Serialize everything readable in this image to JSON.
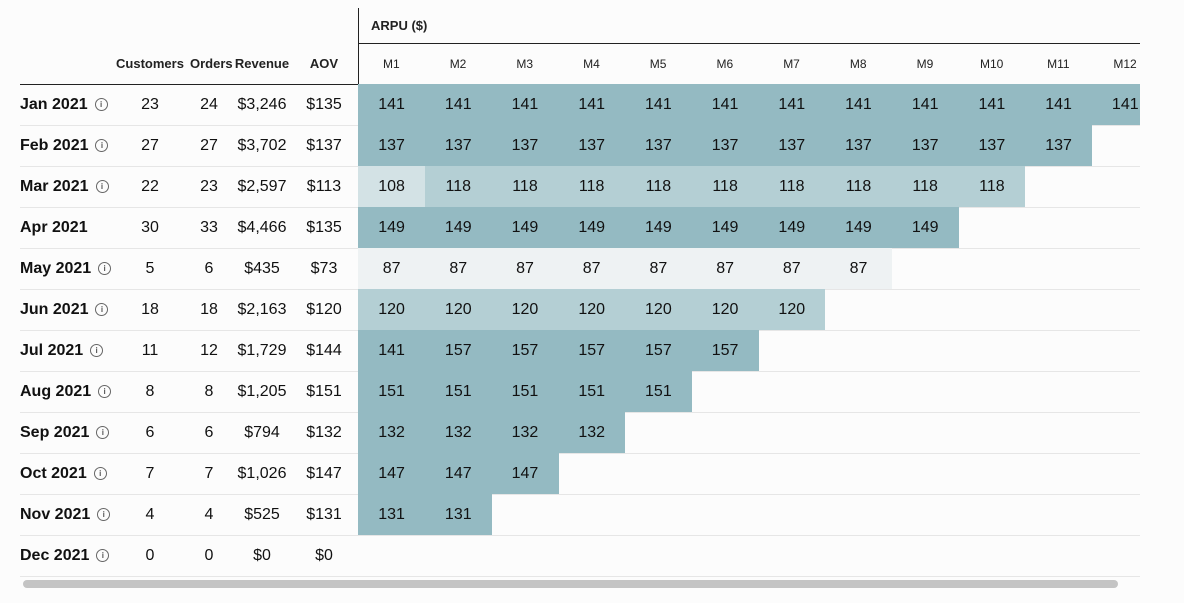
{
  "group_header": "ARPU ($)",
  "columns": [
    "Customers",
    "Orders",
    "Revenue",
    "AOV"
  ],
  "months": [
    "M1",
    "M2",
    "M3",
    "M4",
    "M5",
    "M6",
    "M7",
    "M8",
    "M9",
    "M10",
    "M11",
    "M12"
  ],
  "colors": {
    "dark": "#94bac2",
    "mid": "#b4cfd4",
    "light": "#d3e2e5",
    "lightest": "#eef2f3"
  },
  "rows": [
    {
      "label": "Jan 2021",
      "info": true,
      "customers": "23",
      "orders": "24",
      "revenue": "$3,246",
      "aov": "$135",
      "cohort": [
        "141",
        "141",
        "141",
        "141",
        "141",
        "141",
        "141",
        "141",
        "141",
        "141",
        "141",
        "141"
      ]
    },
    {
      "label": "Feb 2021",
      "info": true,
      "customers": "27",
      "orders": "27",
      "revenue": "$3,702",
      "aov": "$137",
      "cohort": [
        "137",
        "137",
        "137",
        "137",
        "137",
        "137",
        "137",
        "137",
        "137",
        "137",
        "137"
      ]
    },
    {
      "label": "Mar 2021",
      "info": true,
      "customers": "22",
      "orders": "23",
      "revenue": "$2,597",
      "aov": "$113",
      "cohort": [
        "108",
        "118",
        "118",
        "118",
        "118",
        "118",
        "118",
        "118",
        "118",
        "118"
      ]
    },
    {
      "label": "Apr 2021",
      "info": false,
      "customers": "30",
      "orders": "33",
      "revenue": "$4,466",
      "aov": "$135",
      "cohort": [
        "149",
        "149",
        "149",
        "149",
        "149",
        "149",
        "149",
        "149",
        "149"
      ]
    },
    {
      "label": "May 2021",
      "info": true,
      "customers": "5",
      "orders": "6",
      "revenue": "$435",
      "aov": "$73",
      "cohort": [
        "87",
        "87",
        "87",
        "87",
        "87",
        "87",
        "87",
        "87"
      ]
    },
    {
      "label": "Jun 2021",
      "info": true,
      "customers": "18",
      "orders": "18",
      "revenue": "$2,163",
      "aov": "$120",
      "cohort": [
        "120",
        "120",
        "120",
        "120",
        "120",
        "120",
        "120"
      ]
    },
    {
      "label": "Jul 2021",
      "info": true,
      "customers": "11",
      "orders": "12",
      "revenue": "$1,729",
      "aov": "$144",
      "cohort": [
        "141",
        "157",
        "157",
        "157",
        "157",
        "157"
      ]
    },
    {
      "label": "Aug 2021",
      "info": true,
      "customers": "8",
      "orders": "8",
      "revenue": "$1,205",
      "aov": "$151",
      "cohort": [
        "151",
        "151",
        "151",
        "151",
        "151"
      ]
    },
    {
      "label": "Sep 2021",
      "info": true,
      "customers": "6",
      "orders": "6",
      "revenue": "$794",
      "aov": "$132",
      "cohort": [
        "132",
        "132",
        "132",
        "132"
      ]
    },
    {
      "label": "Oct 2021",
      "info": true,
      "customers": "7",
      "orders": "7",
      "revenue": "$1,026",
      "aov": "$147",
      "cohort": [
        "147",
        "147",
        "147"
      ]
    },
    {
      "label": "Nov 2021",
      "info": true,
      "customers": "4",
      "orders": "4",
      "revenue": "$525",
      "aov": "$131",
      "cohort": [
        "131",
        "131"
      ]
    },
    {
      "label": "Dec 2021",
      "info": true,
      "customers": "0",
      "orders": "0",
      "revenue": "$0",
      "aov": "$0",
      "cohort": []
    }
  ]
}
